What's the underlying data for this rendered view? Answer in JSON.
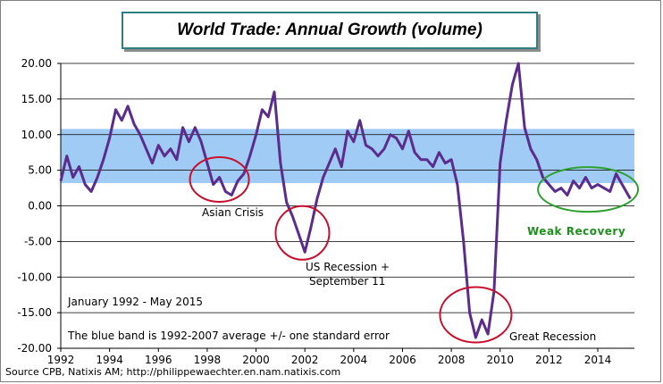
{
  "chart_data": {
    "type": "line",
    "title": "World Trade: Annual Growth (volume)",
    "ylim": [
      -20,
      20
    ],
    "yticks": [
      "20.00",
      "15.00",
      "10.00",
      "5.00",
      "0.00",
      "-5.00",
      "-10.00",
      "-15.00",
      "-20.00"
    ],
    "ytick_values": [
      20,
      15,
      10,
      5,
      0,
      -5,
      -10,
      -15,
      -20
    ],
    "xlim": [
      1992,
      2015.5
    ],
    "xticks": [
      "1992",
      "1994",
      "1996",
      "1998",
      "2000",
      "2002",
      "2004",
      "2006",
      "2008",
      "2010",
      "2012",
      "2014"
    ],
    "xtick_values": [
      1992,
      1994,
      1996,
      1998,
      2000,
      2002,
      2004,
      2006,
      2008,
      2010,
      2012,
      2014
    ],
    "band": [
      3.2,
      10.8
    ],
    "grid": "horizontal",
    "colors": {
      "line": "#5b2c8c",
      "band": "#9fcbf5",
      "circle_red": "#c8102e",
      "circle_green": "#2ea02e",
      "title_border": "#2f7f7f"
    },
    "series": [
      {
        "x": [
          1992.0,
          1992.25,
          1992.5,
          1992.75,
          1993.0,
          1993.25,
          1993.5,
          1993.75,
          1994.0,
          1994.25,
          1994.5,
          1994.75,
          1995.0,
          1995.25,
          1995.5,
          1995.75,
          1996.0,
          1996.25,
          1996.5,
          1996.75,
          1997.0,
          1997.25,
          1997.5,
          1997.75,
          1998.0,
          1998.25,
          1998.5,
          1998.75,
          1999.0,
          1999.25,
          1999.5,
          1999.75,
          2000.0,
          2000.25,
          2000.5,
          2000.75,
          2001.0,
          2001.25,
          2001.5,
          2001.75,
          2002.0,
          2002.25,
          2002.5,
          2002.75,
          2003.0,
          2003.25,
          2003.5,
          2003.75,
          2004.0,
          2004.25,
          2004.5,
          2004.75,
          2005.0,
          2005.25,
          2005.5,
          2005.75,
          2006.0,
          2006.25,
          2006.5,
          2006.75,
          2007.0,
          2007.25,
          2007.5,
          2007.75,
          2008.0,
          2008.25,
          2008.5,
          2008.75,
          2009.0,
          2009.25,
          2009.5,
          2009.75,
          2010.0,
          2010.25,
          2010.5,
          2010.75,
          2011.0,
          2011.25,
          2011.5,
          2011.75,
          2012.0,
          2012.25,
          2012.5,
          2012.75,
          2013.0,
          2013.25,
          2013.5,
          2013.75,
          2014.0,
          2014.25,
          2014.5,
          2014.75,
          2015.0,
          2015.33
        ],
        "values": [
          3.5,
          7.0,
          4.0,
          5.5,
          3.0,
          2.0,
          4.0,
          6.5,
          9.5,
          13.5,
          12.0,
          14.0,
          11.5,
          10.0,
          8.0,
          6.0,
          8.5,
          7.0,
          8.0,
          6.5,
          11.0,
          9.0,
          11.0,
          9.0,
          6.0,
          3.0,
          4.0,
          2.0,
          1.5,
          3.5,
          4.5,
          7.0,
          10.0,
          13.5,
          12.5,
          16.0,
          6.0,
          0.5,
          -1.5,
          -4.0,
          -6.5,
          -3.0,
          1.0,
          4.0,
          6.0,
          8.0,
          5.5,
          10.5,
          9.0,
          12.0,
          8.5,
          8.0,
          7.0,
          8.0,
          10.0,
          9.5,
          8.0,
          10.5,
          7.5,
          6.5,
          6.5,
          5.5,
          7.5,
          6.0,
          6.5,
          3.0,
          -5.0,
          -15.0,
          -18.5,
          -16.0,
          -18.0,
          -12.0,
          6.0,
          12.0,
          17.0,
          20.0,
          11.0,
          8.0,
          6.5,
          4.0,
          3.0,
          2.0,
          2.5,
          1.5,
          3.5,
          2.5,
          4.0,
          2.5,
          3.0,
          2.5,
          2.0,
          4.5,
          3.0,
          1.0
        ]
      }
    ],
    "annotations": {
      "asian_crisis": "Asian Crisis",
      "us_recession_1": "US Recession +",
      "us_recession_2": "September 11",
      "great_recession": "Great Recession",
      "weak_recovery": "Weak Recovery",
      "period": "January 1992 - May 2015",
      "band_note": "The blue band is 1992-2007  average +/- one standard error"
    }
  },
  "source": "Source CPB, Natixis AM; http://philippewaechter.en.nam.natixis.com"
}
